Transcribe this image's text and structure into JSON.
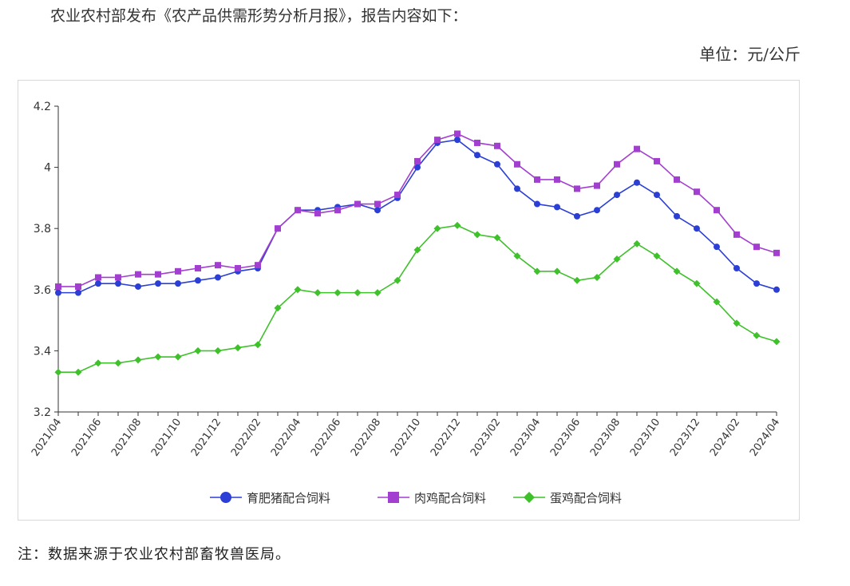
{
  "intro_text": "农业农村部发布《农产品供需形势分析月报》，报告内容如下：",
  "unit_text": "单位：元/公斤",
  "note_text": "注：数据来源于农业农村部畜牧兽医局。",
  "chart_data": {
    "type": "line",
    "title": "",
    "xlabel": "",
    "ylabel": "",
    "ylim": [
      3.2,
      4.2
    ],
    "yticks": [
      3.2,
      3.4,
      3.6,
      3.8,
      4,
      4.2
    ],
    "grid": false,
    "legend_position": "bottom-center",
    "x": [
      "2021/04",
      "2021/05",
      "2021/06",
      "2021/07",
      "2021/08",
      "2021/09",
      "2021/10",
      "2021/11",
      "2021/12",
      "2022/01",
      "2022/02",
      "2022/03",
      "2022/04",
      "2022/05",
      "2022/06",
      "2022/07",
      "2022/08",
      "2022/09",
      "2022/10",
      "2022/11",
      "2022/12",
      "2023/01",
      "2023/02",
      "2023/03",
      "2023/04",
      "2023/05",
      "2023/06",
      "2023/07",
      "2023/08",
      "2023/09",
      "2023/10",
      "2023/11",
      "2023/12",
      "2024/01",
      "2024/02",
      "2024/03",
      "2024/04"
    ],
    "xtick_labels": [
      "2021/04",
      "2021/06",
      "2021/08",
      "2021/10",
      "2021/12",
      "2022/02",
      "2022/04",
      "2022/06",
      "2022/08",
      "2022/10",
      "2022/12",
      "2023/02",
      "2023/04",
      "2023/06",
      "2023/08",
      "2023/10",
      "2023/12",
      "2024/02",
      "2024/04"
    ],
    "series": [
      {
        "name": "育肥猪配合饲料",
        "color": "#2b3fd6",
        "marker": "circle",
        "values": [
          3.59,
          3.59,
          3.62,
          3.62,
          3.61,
          3.62,
          3.62,
          3.63,
          3.64,
          3.66,
          3.67,
          3.8,
          3.86,
          3.86,
          3.87,
          3.88,
          3.86,
          3.9,
          4.0,
          4.08,
          4.09,
          4.04,
          4.01,
          3.93,
          3.88,
          3.87,
          3.84,
          3.86,
          3.91,
          3.95,
          3.91,
          3.84,
          3.8,
          3.74,
          3.67,
          3.62,
          3.6
        ]
      },
      {
        "name": "肉鸡配合饲料",
        "color": "#a33fd0",
        "marker": "square",
        "values": [
          3.61,
          3.61,
          3.64,
          3.64,
          3.65,
          3.65,
          3.66,
          3.67,
          3.68,
          3.67,
          3.68,
          3.8,
          3.86,
          3.85,
          3.86,
          3.88,
          3.88,
          3.91,
          4.02,
          4.09,
          4.11,
          4.08,
          4.07,
          4.01,
          3.96,
          3.96,
          3.93,
          3.94,
          4.01,
          4.06,
          4.02,
          3.96,
          3.92,
          3.86,
          3.78,
          3.74,
          3.72
        ]
      },
      {
        "name": "蛋鸡配合饲料",
        "color": "#3fc12b",
        "marker": "diamond",
        "values": [
          3.33,
          3.33,
          3.36,
          3.36,
          3.37,
          3.38,
          3.38,
          3.4,
          3.4,
          3.41,
          3.42,
          3.54,
          3.6,
          3.59,
          3.59,
          3.59,
          3.59,
          3.63,
          3.73,
          3.8,
          3.81,
          3.78,
          3.77,
          3.71,
          3.66,
          3.66,
          3.63,
          3.64,
          3.7,
          3.75,
          3.71,
          3.66,
          3.62,
          3.56,
          3.49,
          3.45,
          3.43
        ]
      }
    ]
  }
}
